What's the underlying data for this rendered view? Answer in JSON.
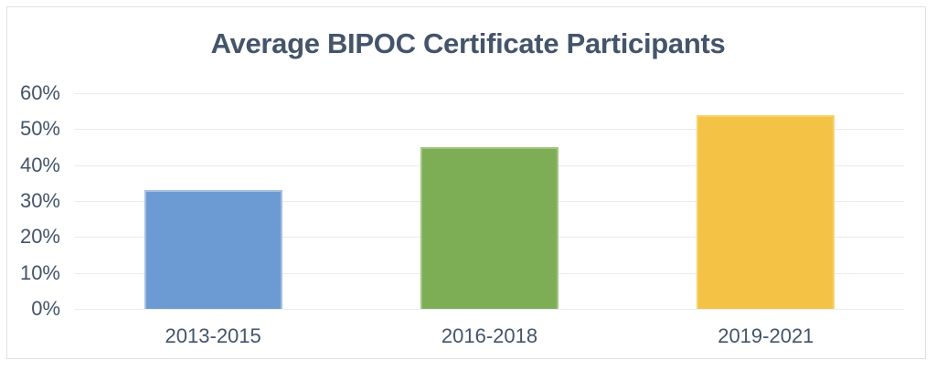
{
  "chart": {
    "title_color": "#44546A",
    "axis_label_color": "#44546A",
    "gridline_color": "#E9EBF0",
    "frame_border_color": "#DFE1E5",
    "background": "#FFFFFF"
  },
  "chart_data": {
    "type": "bar",
    "title": "Average BIPOC Certificate Participants",
    "categories": [
      "2013-2015",
      "2016-2018",
      "2019-2021"
    ],
    "values": [
      33,
      45,
      54
    ],
    "value_unit": "%",
    "bar_colors": [
      "#6B9BD2",
      "#7DAE55",
      "#F4C244"
    ],
    "bar_edge_colors": [
      "#A3C0E2",
      "#A4C583",
      "#F6D26F"
    ],
    "xlabel": "",
    "ylabel": "",
    "ylim": [
      0,
      60
    ],
    "yticks": [
      0,
      10,
      20,
      30,
      40,
      50,
      60
    ],
    "ytick_format": "{v}%",
    "grid": true,
    "legend": false,
    "data_labels": false
  }
}
